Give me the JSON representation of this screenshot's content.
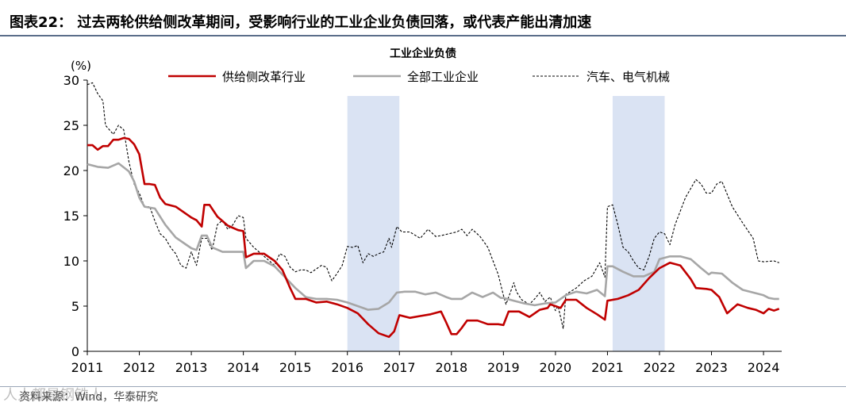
{
  "header": {
    "title": "图表22：  过去两轮供给侧改革期间，受影响行业的工业企业负债回落，或代表产能出清加速"
  },
  "footer": {
    "source": "资料来源：Wind，华泰研究",
    "watermark": "人人都是钢铁人"
  },
  "colors": {
    "supply_side": "#c00000",
    "all_industry": "#a6a6a6",
    "auto_machinery": "#000000",
    "shade": "#dae3f3"
  },
  "chart_data": {
    "type": "line",
    "title": "工业企业负债",
    "ylabel": "(%)",
    "ylim": [
      0,
      30
    ],
    "xlim": [
      2011,
      2024.35
    ],
    "yticks": [
      0,
      5,
      10,
      15,
      20,
      25,
      30
    ],
    "xticks": [
      2011,
      2012,
      2013,
      2014,
      2015,
      2016,
      2017,
      2018,
      2019,
      2020,
      2021,
      2022,
      2023,
      2024
    ],
    "xtick_labels": [
      "2011",
      "2012",
      "2013",
      "2014",
      "2015",
      "2016",
      "2017",
      "2018",
      "2019",
      "2020",
      "2021",
      "2022",
      "2023",
      "2024"
    ],
    "ytick_labels": [
      "0",
      "5",
      "10",
      "15",
      "20",
      "25",
      "30"
    ],
    "shaded_ranges": [
      [
        2016.0,
        2017.0
      ],
      [
        2021.1,
        2022.1
      ]
    ],
    "legend": "top",
    "series": [
      {
        "name": "供给侧改革行业",
        "style": "solid",
        "points": [
          [
            2011.0,
            22.8
          ],
          [
            2011.1,
            22.8
          ],
          [
            2011.2,
            22.3
          ],
          [
            2011.3,
            22.7
          ],
          [
            2011.4,
            22.7
          ],
          [
            2011.5,
            23.4
          ],
          [
            2011.6,
            23.4
          ],
          [
            2011.7,
            23.6
          ],
          [
            2011.8,
            23.5
          ],
          [
            2011.9,
            22.9
          ],
          [
            2012.0,
            21.8
          ],
          [
            2012.1,
            18.5
          ],
          [
            2012.2,
            18.5
          ],
          [
            2012.3,
            18.4
          ],
          [
            2012.4,
            17.0
          ],
          [
            2012.5,
            16.3
          ],
          [
            2012.7,
            16.0
          ],
          [
            2012.9,
            15.2
          ],
          [
            2013.0,
            14.8
          ],
          [
            2013.1,
            14.5
          ],
          [
            2013.2,
            13.8
          ],
          [
            2013.25,
            16.2
          ],
          [
            2013.35,
            16.2
          ],
          [
            2013.5,
            14.9
          ],
          [
            2013.7,
            13.9
          ],
          [
            2013.9,
            13.4
          ],
          [
            2014.0,
            13.3
          ],
          [
            2014.05,
            10.4
          ],
          [
            2014.2,
            10.8
          ],
          [
            2014.4,
            10.8
          ],
          [
            2014.6,
            10.0
          ],
          [
            2014.75,
            9.0
          ],
          [
            2014.9,
            7.0
          ],
          [
            2015.0,
            5.8
          ],
          [
            2015.2,
            5.8
          ],
          [
            2015.4,
            5.4
          ],
          [
            2015.6,
            5.5
          ],
          [
            2015.8,
            5.2
          ],
          [
            2016.0,
            4.8
          ],
          [
            2016.2,
            4.2
          ],
          [
            2016.4,
            3.0
          ],
          [
            2016.6,
            2.0
          ],
          [
            2016.8,
            1.6
          ],
          [
            2016.9,
            2.2
          ],
          [
            2017.0,
            4.0
          ],
          [
            2017.2,
            3.7
          ],
          [
            2017.4,
            3.9
          ],
          [
            2017.6,
            4.1
          ],
          [
            2017.8,
            4.4
          ],
          [
            2017.9,
            3.2
          ],
          [
            2018.0,
            1.9
          ],
          [
            2018.1,
            1.9
          ],
          [
            2018.2,
            2.6
          ],
          [
            2018.3,
            3.4
          ],
          [
            2018.5,
            3.4
          ],
          [
            2018.7,
            3.0
          ],
          [
            2018.9,
            3.0
          ],
          [
            2019.0,
            2.9
          ],
          [
            2019.1,
            4.4
          ],
          [
            2019.3,
            4.4
          ],
          [
            2019.5,
            3.8
          ],
          [
            2019.7,
            4.6
          ],
          [
            2019.85,
            4.8
          ],
          [
            2019.9,
            5.2
          ],
          [
            2020.0,
            5.0
          ],
          [
            2020.1,
            4.8
          ],
          [
            2020.2,
            5.7
          ],
          [
            2020.4,
            5.7
          ],
          [
            2020.6,
            4.8
          ],
          [
            2020.8,
            4.1
          ],
          [
            2020.95,
            3.5
          ],
          [
            2021.0,
            5.6
          ],
          [
            2021.2,
            5.8
          ],
          [
            2021.4,
            6.2
          ],
          [
            2021.6,
            6.8
          ],
          [
            2021.8,
            8.1
          ],
          [
            2022.0,
            9.2
          ],
          [
            2022.2,
            9.8
          ],
          [
            2022.4,
            9.5
          ],
          [
            2022.6,
            8.0
          ],
          [
            2022.7,
            7.0
          ],
          [
            2022.9,
            6.9
          ],
          [
            2023.0,
            6.8
          ],
          [
            2023.15,
            6.0
          ],
          [
            2023.3,
            4.2
          ],
          [
            2023.5,
            5.2
          ],
          [
            2023.7,
            4.8
          ],
          [
            2023.85,
            4.6
          ],
          [
            2024.0,
            4.2
          ],
          [
            2024.1,
            4.7
          ],
          [
            2024.2,
            4.5
          ],
          [
            2024.3,
            4.7
          ]
        ]
      },
      {
        "name": "全部工业企业",
        "style": "solid",
        "points": [
          [
            2011.0,
            20.7
          ],
          [
            2011.2,
            20.4
          ],
          [
            2011.4,
            20.3
          ],
          [
            2011.6,
            20.8
          ],
          [
            2011.8,
            19.9
          ],
          [
            2011.9,
            18.8
          ],
          [
            2012.0,
            17.0
          ],
          [
            2012.1,
            16.0
          ],
          [
            2012.3,
            15.8
          ],
          [
            2012.5,
            14.0
          ],
          [
            2012.7,
            12.6
          ],
          [
            2012.9,
            11.8
          ],
          [
            2013.0,
            11.4
          ],
          [
            2013.1,
            11.2
          ],
          [
            2013.2,
            12.8
          ],
          [
            2013.3,
            12.8
          ],
          [
            2013.4,
            11.5
          ],
          [
            2013.6,
            11.0
          ],
          [
            2013.8,
            11.0
          ],
          [
            2014.0,
            11.0
          ],
          [
            2014.05,
            9.2
          ],
          [
            2014.2,
            10.0
          ],
          [
            2014.4,
            10.0
          ],
          [
            2014.6,
            9.4
          ],
          [
            2014.8,
            8.2
          ],
          [
            2015.0,
            7.0
          ],
          [
            2015.2,
            6.0
          ],
          [
            2015.4,
            5.8
          ],
          [
            2015.6,
            5.8
          ],
          [
            2015.8,
            5.7
          ],
          [
            2016.0,
            5.4
          ],
          [
            2016.2,
            5.0
          ],
          [
            2016.4,
            4.6
          ],
          [
            2016.6,
            4.7
          ],
          [
            2016.8,
            5.4
          ],
          [
            2016.95,
            6.5
          ],
          [
            2017.1,
            6.6
          ],
          [
            2017.3,
            6.6
          ],
          [
            2017.5,
            6.3
          ],
          [
            2017.7,
            6.5
          ],
          [
            2017.9,
            6.0
          ],
          [
            2018.0,
            5.8
          ],
          [
            2018.2,
            5.8
          ],
          [
            2018.4,
            6.5
          ],
          [
            2018.6,
            6.0
          ],
          [
            2018.8,
            6.5
          ],
          [
            2018.95,
            5.9
          ],
          [
            2019.0,
            5.9
          ],
          [
            2019.2,
            5.6
          ],
          [
            2019.4,
            5.3
          ],
          [
            2019.6,
            5.1
          ],
          [
            2019.8,
            5.3
          ],
          [
            2020.0,
            5.4
          ],
          [
            2020.2,
            6.2
          ],
          [
            2020.4,
            6.6
          ],
          [
            2020.6,
            6.4
          ],
          [
            2020.8,
            6.8
          ],
          [
            2020.95,
            6.1
          ],
          [
            2021.0,
            9.4
          ],
          [
            2021.1,
            9.4
          ],
          [
            2021.3,
            8.8
          ],
          [
            2021.5,
            8.3
          ],
          [
            2021.7,
            8.3
          ],
          [
            2021.9,
            8.8
          ],
          [
            2022.0,
            10.2
          ],
          [
            2022.2,
            10.5
          ],
          [
            2022.4,
            10.5
          ],
          [
            2022.6,
            10.2
          ],
          [
            2022.8,
            9.2
          ],
          [
            2022.95,
            8.5
          ],
          [
            2023.0,
            8.7
          ],
          [
            2023.2,
            8.6
          ],
          [
            2023.4,
            7.6
          ],
          [
            2023.6,
            6.8
          ],
          [
            2023.8,
            6.5
          ],
          [
            2024.0,
            6.2
          ],
          [
            2024.1,
            5.9
          ],
          [
            2024.2,
            5.8
          ],
          [
            2024.3,
            5.8
          ]
        ]
      },
      {
        "name": "汽车、电气机械",
        "style": "dashed",
        "points": [
          [
            2011.0,
            29.5
          ],
          [
            2011.1,
            29.7
          ],
          [
            2011.2,
            28.5
          ],
          [
            2011.3,
            27.7
          ],
          [
            2011.35,
            25.0
          ],
          [
            2011.5,
            24.0
          ],
          [
            2011.6,
            25.0
          ],
          [
            2011.7,
            24.5
          ],
          [
            2011.8,
            21.0
          ],
          [
            2011.9,
            18.5
          ],
          [
            2012.0,
            17.5
          ],
          [
            2012.1,
            16.0
          ],
          [
            2012.2,
            16.0
          ],
          [
            2012.3,
            14.4
          ],
          [
            2012.4,
            13.0
          ],
          [
            2012.5,
            12.5
          ],
          [
            2012.6,
            11.5
          ],
          [
            2012.7,
            10.8
          ],
          [
            2012.8,
            9.5
          ],
          [
            2012.9,
            9.2
          ],
          [
            2013.0,
            11.0
          ],
          [
            2013.1,
            9.5
          ],
          [
            2013.2,
            12.5
          ],
          [
            2013.3,
            12.5
          ],
          [
            2013.4,
            11.2
          ],
          [
            2013.5,
            14.0
          ],
          [
            2013.6,
            14.5
          ],
          [
            2013.7,
            13.5
          ],
          [
            2013.8,
            14.0
          ],
          [
            2013.9,
            15.0
          ],
          [
            2014.0,
            14.8
          ],
          [
            2014.05,
            12.5
          ],
          [
            2014.2,
            11.5
          ],
          [
            2014.3,
            11.0
          ],
          [
            2014.5,
            10.0
          ],
          [
            2014.6,
            9.5
          ],
          [
            2014.7,
            10.8
          ],
          [
            2014.8,
            10.5
          ],
          [
            2014.9,
            9.3
          ],
          [
            2015.0,
            8.8
          ],
          [
            2015.1,
            9.0
          ],
          [
            2015.2,
            9.0
          ],
          [
            2015.3,
            8.7
          ],
          [
            2015.5,
            9.5
          ],
          [
            2015.6,
            9.3
          ],
          [
            2015.7,
            7.8
          ],
          [
            2015.8,
            8.6
          ],
          [
            2015.9,
            9.5
          ],
          [
            2016.0,
            11.6
          ],
          [
            2016.1,
            11.5
          ],
          [
            2016.2,
            11.7
          ],
          [
            2016.3,
            9.8
          ],
          [
            2016.4,
            10.8
          ],
          [
            2016.5,
            10.5
          ],
          [
            2016.6,
            10.8
          ],
          [
            2016.7,
            11.0
          ],
          [
            2016.8,
            12.5
          ],
          [
            2016.85,
            11.5
          ],
          [
            2016.95,
            13.8
          ],
          [
            2017.05,
            13.2
          ],
          [
            2017.2,
            13.2
          ],
          [
            2017.4,
            12.5
          ],
          [
            2017.55,
            13.5
          ],
          [
            2017.7,
            12.7
          ],
          [
            2017.8,
            12.8
          ],
          [
            2017.95,
            13.0
          ],
          [
            2018.1,
            13.2
          ],
          [
            2018.2,
            13.5
          ],
          [
            2018.3,
            12.8
          ],
          [
            2018.4,
            13.5
          ],
          [
            2018.55,
            12.7
          ],
          [
            2018.7,
            11.5
          ],
          [
            2018.8,
            10.0
          ],
          [
            2018.9,
            8.5
          ],
          [
            2019.0,
            6.2
          ],
          [
            2019.05,
            5.2
          ],
          [
            2019.1,
            6.0
          ],
          [
            2019.2,
            7.6
          ],
          [
            2019.25,
            6.6
          ],
          [
            2019.35,
            5.7
          ],
          [
            2019.5,
            5.2
          ],
          [
            2019.6,
            5.8
          ],
          [
            2019.7,
            6.5
          ],
          [
            2019.8,
            5.5
          ],
          [
            2019.9,
            6.0
          ],
          [
            2020.0,
            4.5
          ],
          [
            2020.05,
            5.0
          ],
          [
            2020.15,
            2.5
          ],
          [
            2020.2,
            6.3
          ],
          [
            2020.4,
            7.0
          ],
          [
            2020.55,
            7.8
          ],
          [
            2020.7,
            8.3
          ],
          [
            2020.85,
            9.8
          ],
          [
            2020.95,
            8.2
          ],
          [
            2021.0,
            16.0
          ],
          [
            2021.1,
            16.2
          ],
          [
            2021.2,
            14.0
          ],
          [
            2021.3,
            11.5
          ],
          [
            2021.4,
            11.0
          ],
          [
            2021.5,
            10.0
          ],
          [
            2021.6,
            9.2
          ],
          [
            2021.7,
            9.0
          ],
          [
            2021.8,
            10.5
          ],
          [
            2021.9,
            12.5
          ],
          [
            2022.0,
            13.2
          ],
          [
            2022.1,
            13.0
          ],
          [
            2022.2,
            11.8
          ],
          [
            2022.3,
            14.0
          ],
          [
            2022.5,
            17.0
          ],
          [
            2022.7,
            19.0
          ],
          [
            2022.8,
            18.5
          ],
          [
            2022.9,
            17.5
          ],
          [
            2023.0,
            17.5
          ],
          [
            2023.1,
            18.5
          ],
          [
            2023.2,
            18.8
          ],
          [
            2023.4,
            16.0
          ],
          [
            2023.6,
            14.2
          ],
          [
            2023.8,
            12.5
          ],
          [
            2023.9,
            10.0
          ],
          [
            2024.0,
            9.9
          ],
          [
            2024.2,
            10.0
          ],
          [
            2024.3,
            9.8
          ]
        ]
      }
    ]
  }
}
